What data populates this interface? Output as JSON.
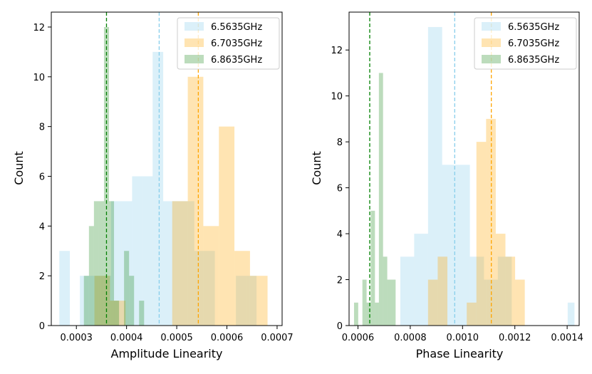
{
  "colors": {
    "s1": "#87ceeb",
    "s2": "#ffa500",
    "s3": "#228b22",
    "mean1": "#87ceeb",
    "mean2": "#ffa500",
    "mean3": "#008000"
  },
  "chart_data": [
    {
      "type": "bar",
      "subtype": "histogram",
      "xlabel": "Amplitude Linearity",
      "ylabel": "Count",
      "xlim": [
        0.00025,
        0.00071
      ],
      "ylim": [
        0,
        12.6
      ],
      "xticks": [
        0.0003,
        0.0004,
        0.0005,
        0.0006,
        0.0007
      ],
      "xtick_labels": [
        "0.0003",
        "0.0004",
        "0.0005",
        "0.0006",
        "0.0007"
      ],
      "yticks": [
        0,
        2,
        4,
        6,
        8,
        10,
        12
      ],
      "ytick_labels": [
        "0",
        "2",
        "4",
        "6",
        "8",
        "10",
        "12"
      ],
      "legend_position": "upper-right",
      "series": [
        {
          "name": "6.5635GHz",
          "color_key": "s1",
          "mean": 0.000465,
          "bins": [
            [
              0.000266,
              0.000287,
              3
            ],
            [
              0.000287,
              0.000307,
              0
            ],
            [
              0.000307,
              0.000328,
              2
            ],
            [
              0.000328,
              0.000349,
              2
            ],
            [
              0.000349,
              0.000369,
              2
            ],
            [
              0.000369,
              0.00039,
              5
            ],
            [
              0.00039,
              0.000411,
              5
            ],
            [
              0.000411,
              0.000432,
              6
            ],
            [
              0.000432,
              0.000452,
              6
            ],
            [
              0.000452,
              0.000473,
              11
            ],
            [
              0.000473,
              0.000494,
              5
            ],
            [
              0.000494,
              0.000514,
              5
            ],
            [
              0.000514,
              0.000535,
              5
            ],
            [
              0.000535,
              0.000556,
              3
            ],
            [
              0.000556,
              0.000576,
              3
            ],
            [
              0.000576,
              0.000597,
              0
            ],
            [
              0.000597,
              0.000618,
              0
            ],
            [
              0.000618,
              0.000638,
              2
            ],
            [
              0.000638,
              0.000659,
              2
            ]
          ]
        },
        {
          "name": "6.7035GHz",
          "color_key": "s2",
          "mean": 0.000543,
          "bins": [
            [
              0.000336,
              0.000367,
              2
            ],
            [
              0.000367,
              0.000398,
              1
            ],
            [
              0.000398,
              0.000429,
              0
            ],
            [
              0.000429,
              0.00046,
              0
            ],
            [
              0.00046,
              0.000491,
              0
            ],
            [
              0.000491,
              0.000522,
              5
            ],
            [
              0.000522,
              0.000553,
              10
            ],
            [
              0.000553,
              0.000584,
              4
            ],
            [
              0.000584,
              0.000615,
              8
            ],
            [
              0.000615,
              0.000646,
              3
            ],
            [
              0.000646,
              0.000681,
              2
            ]
          ]
        },
        {
          "name": "6.8635GHz",
          "color_key": "s3",
          "mean": 0.00036,
          "bins": [
            [
              0.000315,
              0.000325,
              2
            ],
            [
              0.000325,
              0.000335,
              4
            ],
            [
              0.000335,
              0.000345,
              5
            ],
            [
              0.000345,
              0.000355,
              5
            ],
            [
              0.000355,
              0.000365,
              12
            ],
            [
              0.000365,
              0.000375,
              5
            ],
            [
              0.000375,
              0.000385,
              1
            ],
            [
              0.000385,
              0.000395,
              0
            ],
            [
              0.000395,
              0.000405,
              3
            ],
            [
              0.000405,
              0.000415,
              2
            ],
            [
              0.000415,
              0.000425,
              0
            ],
            [
              0.000425,
              0.000435,
              1
            ]
          ]
        }
      ]
    },
    {
      "type": "bar",
      "subtype": "histogram",
      "xlabel": "Phase Linearity",
      "ylabel": "Count",
      "xlim": [
        0.000566,
        0.001446
      ],
      "ylim": [
        0,
        13.65
      ],
      "xticks": [
        0.0006,
        0.0008,
        0.001,
        0.0012,
        0.0014
      ],
      "xtick_labels": [
        "0.0006",
        "0.0008",
        "0.0010",
        "0.0012",
        "0.0014"
      ],
      "yticks": [
        0,
        2,
        4,
        6,
        8,
        10,
        12
      ],
      "ytick_labels": [
        "0",
        "2",
        "4",
        "6",
        "8",
        "10",
        "12"
      ],
      "legend_position": "upper-right",
      "series": [
        {
          "name": "6.5635GHz",
          "color_key": "s1",
          "mean": 0.00097,
          "bins": [
            [
              0.000762,
              0.000815,
              3
            ],
            [
              0.000815,
              0.000868,
              4
            ],
            [
              0.000868,
              0.000922,
              13
            ],
            [
              0.000922,
              0.000975,
              7
            ],
            [
              0.000975,
              0.001028,
              7
            ],
            [
              0.001028,
              0.001082,
              3
            ],
            [
              0.001082,
              0.001135,
              2
            ],
            [
              0.001135,
              0.001188,
              3
            ],
            [
              0.001188,
              0.001242,
              0
            ],
            [
              0.001242,
              0.001295,
              0
            ],
            [
              0.001295,
              0.001348,
              0
            ],
            [
              0.001348,
              0.001402,
              0
            ],
            [
              0.001402,
              0.001428,
              1
            ]
          ]
        },
        {
          "name": "6.7035GHz",
          "color_key": "s2",
          "mean": 0.00111,
          "bins": [
            [
              0.000868,
              0.000905,
              2
            ],
            [
              0.000905,
              0.000942,
              3
            ],
            [
              0.000942,
              0.000979,
              0
            ],
            [
              0.000979,
              0.001016,
              0
            ],
            [
              0.001016,
              0.001053,
              1
            ],
            [
              0.001053,
              0.00109,
              8
            ],
            [
              0.00109,
              0.001127,
              9
            ],
            [
              0.001127,
              0.001164,
              4
            ],
            [
              0.001164,
              0.001201,
              3
            ],
            [
              0.001201,
              0.001238,
              2
            ]
          ]
        },
        {
          "name": "6.8635GHz",
          "color_key": "s3",
          "mean": 0.000645,
          "bins": [
            [
              0.000585,
              0.000601,
              1
            ],
            [
              0.000601,
              0.000617,
              0
            ],
            [
              0.000617,
              0.000633,
              2
            ],
            [
              0.000633,
              0.000649,
              1
            ],
            [
              0.000649,
              0.000665,
              5
            ],
            [
              0.000665,
              0.00068,
              1
            ],
            [
              0.00068,
              0.000696,
              11
            ],
            [
              0.000696,
              0.000712,
              3
            ],
            [
              0.000712,
              0.000728,
              2
            ],
            [
              0.000728,
              0.000744,
              2
            ]
          ]
        }
      ]
    }
  ]
}
